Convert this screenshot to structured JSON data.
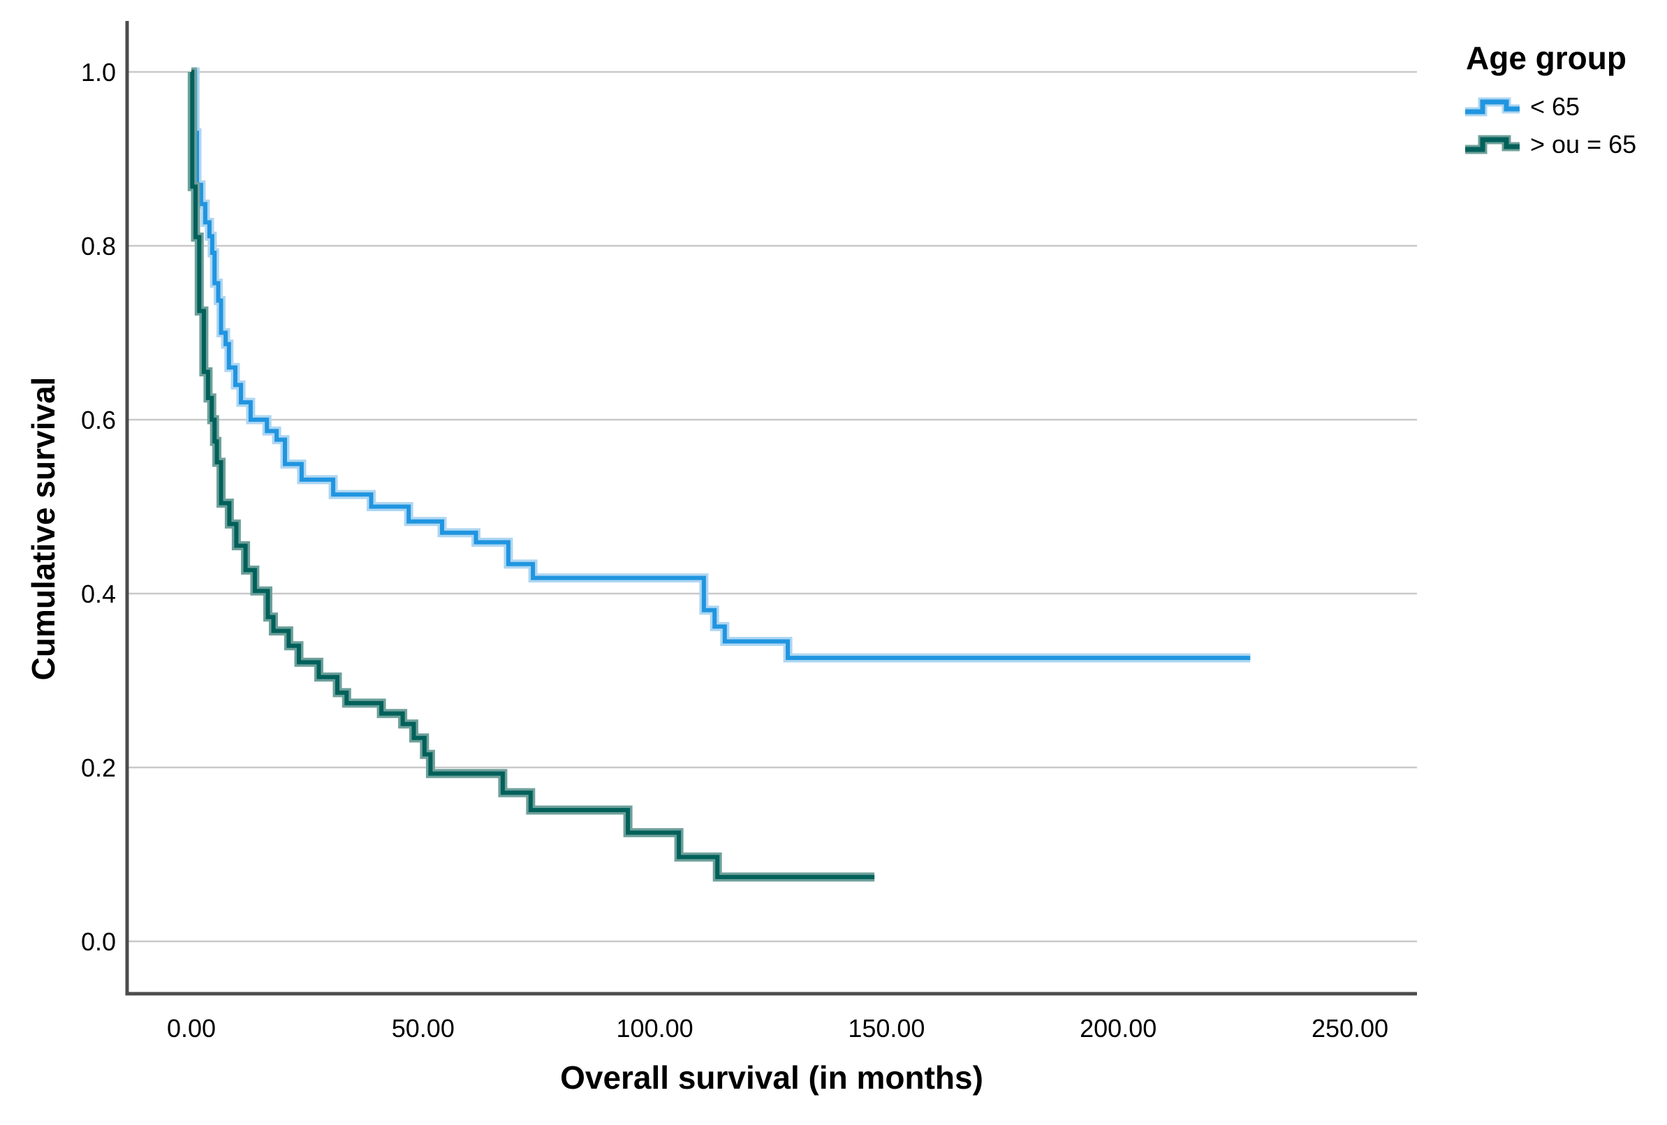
{
  "chart_data": {
    "type": "line",
    "subtype": "kaplan-meier-step-plot",
    "title": "",
    "xlabel": "Overall survival (in months)",
    "ylabel": "Cumulative survival",
    "xlim": [
      -14,
      264
    ],
    "ylim": [
      -0.06,
      1.06
    ],
    "grid": "horizontal-only",
    "xticks": {
      "values": [
        0,
        50,
        100,
        150,
        200,
        250
      ],
      "labels": [
        "0.00",
        "50.00",
        "100.00",
        "150.00",
        "200.00",
        "250.00"
      ]
    },
    "yticks": {
      "values": [
        0.0,
        0.2,
        0.4,
        0.6,
        0.8,
        1.0
      ],
      "labels": [
        "0.0",
        "0.2",
        "0.4",
        "0.6",
        "0.8",
        "1.0"
      ]
    },
    "legend": {
      "title": "Age group",
      "position": "top-right-outside",
      "entries": [
        {
          "label": "< 65",
          "color": "#2095e0",
          "halo": "#aed6f2"
        },
        {
          "label": "> ou = 65",
          "color": "#00605a",
          "halo": "#6fa09b"
        }
      ]
    },
    "series": [
      {
        "id": "under-65",
        "name": "< 65",
        "color": "#2095e0",
        "halo": "#aed6f2",
        "steps": [
          [
            0,
            1.0
          ],
          [
            0.8,
            0.93
          ],
          [
            1.2,
            0.87
          ],
          [
            2.1,
            0.848
          ],
          [
            3,
            0.827
          ],
          [
            3.9,
            0.811
          ],
          [
            4.5,
            0.792
          ],
          [
            5,
            0.757
          ],
          [
            5.8,
            0.737
          ],
          [
            6.4,
            0.7
          ],
          [
            7.4,
            0.687
          ],
          [
            8.1,
            0.66
          ],
          [
            9.5,
            0.64
          ],
          [
            10.7,
            0.62
          ],
          [
            12.8,
            0.6
          ],
          [
            16.3,
            0.587
          ],
          [
            18.4,
            0.577
          ],
          [
            20.2,
            0.549
          ],
          [
            23.8,
            0.531
          ],
          [
            30.6,
            0.514
          ],
          [
            38.8,
            0.5
          ],
          [
            46.9,
            0.483
          ],
          [
            54.1,
            0.47
          ],
          [
            61.4,
            0.459
          ],
          [
            68.4,
            0.434
          ],
          [
            73.7,
            0.418
          ],
          [
            110.6,
            0.381
          ],
          [
            112.9,
            0.362
          ],
          [
            115.1,
            0.345
          ],
          [
            128.7,
            0.326
          ],
          [
            228.5,
            0.326
          ]
        ]
      },
      {
        "id": "65-and-over",
        "name": "> ou = 65",
        "color": "#00605a",
        "halo": "#6fa09b",
        "steps": [
          [
            0,
            1.0
          ],
          [
            0.2,
            0.868
          ],
          [
            0.9,
            0.81
          ],
          [
            1.7,
            0.725
          ],
          [
            2.7,
            0.655
          ],
          [
            3.6,
            0.625
          ],
          [
            4.4,
            0.6
          ],
          [
            5,
            0.575
          ],
          [
            5.5,
            0.551
          ],
          [
            6.4,
            0.504
          ],
          [
            8.2,
            0.48
          ],
          [
            9.7,
            0.455
          ],
          [
            11.7,
            0.427
          ],
          [
            13.7,
            0.403
          ],
          [
            16.5,
            0.373
          ],
          [
            17.7,
            0.357
          ],
          [
            21,
            0.34
          ],
          [
            23.2,
            0.321
          ],
          [
            27.5,
            0.304
          ],
          [
            31.5,
            0.286
          ],
          [
            33.5,
            0.274
          ],
          [
            41,
            0.262
          ],
          [
            45.6,
            0.25
          ],
          [
            48,
            0.234
          ],
          [
            50.3,
            0.215
          ],
          [
            51.6,
            0.193
          ],
          [
            67.2,
            0.171
          ],
          [
            73.2,
            0.151
          ],
          [
            94.2,
            0.125
          ],
          [
            105.2,
            0.097
          ],
          [
            113.5,
            0.074
          ],
          [
            147.4,
            0.074
          ]
        ]
      }
    ]
  },
  "colors": {
    "background": "#ffffff",
    "grid": "#c9c9c9",
    "axis": "#4c4c4c",
    "text": "#000000"
  }
}
